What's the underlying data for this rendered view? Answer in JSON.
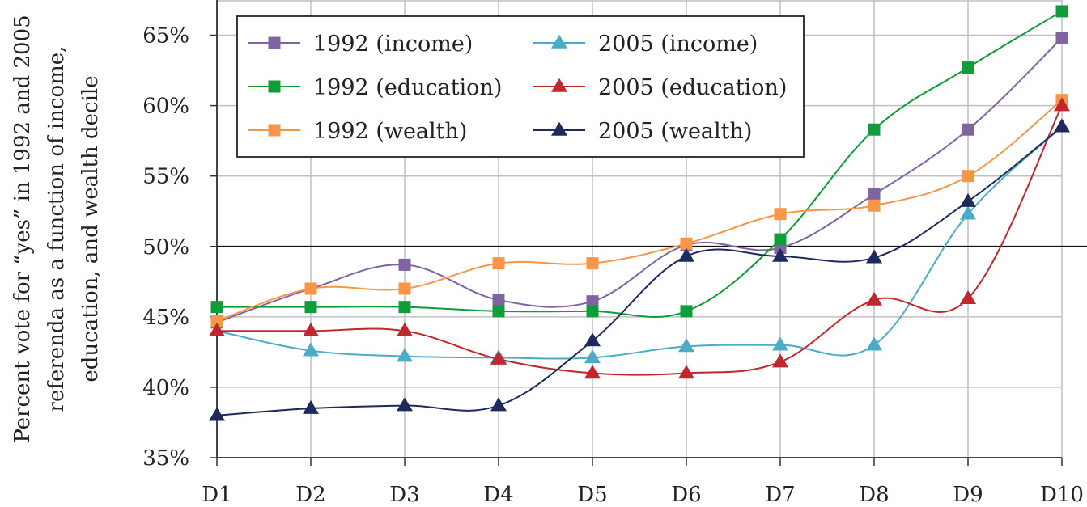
{
  "chart_data": {
    "type": "line",
    "title": "",
    "xlabel": "",
    "ylabel_lines": [
      "Percent vote for “yes” in 1992 and 2005",
      "referenda as a function of income,",
      "education, and wealth decile"
    ],
    "categories": [
      "D1",
      "D2",
      "D3",
      "D4",
      "D5",
      "D6",
      "D7",
      "D8",
      "D9",
      "D10"
    ],
    "ylim": [
      35,
      67.5
    ],
    "yticks": [
      35,
      40,
      45,
      50,
      55,
      60,
      65
    ],
    "ytick_labels": [
      "35%",
      "40%",
      "45%",
      "50%",
      "55%",
      "60%",
      "65%"
    ],
    "reference_line": 50,
    "grid": true,
    "legend_position": "top-left",
    "series": [
      {
        "name": "1992 (income)",
        "marker": "square",
        "color": "#8064a2",
        "values": [
          44.6,
          47.0,
          48.7,
          46.2,
          46.1,
          50.1,
          49.9,
          53.7,
          58.3,
          64.8
        ]
      },
      {
        "name": "1992 (education)",
        "marker": "square",
        "color": "#0f9d3a",
        "values": [
          45.7,
          45.7,
          45.7,
          45.4,
          45.4,
          45.4,
          50.5,
          58.3,
          62.7,
          66.7
        ]
      },
      {
        "name": "1992 (wealth)",
        "marker": "square",
        "color": "#f79646",
        "values": [
          44.7,
          47.0,
          47.0,
          48.8,
          48.8,
          50.2,
          52.3,
          52.9,
          55.0,
          60.4
        ]
      },
      {
        "name": "2005 (income)",
        "marker": "triangle",
        "color": "#4bacc6",
        "values": [
          44.0,
          42.6,
          42.2,
          42.1,
          42.1,
          42.9,
          43.0,
          43.0,
          52.3,
          58.5
        ]
      },
      {
        "name": "2005 (education)",
        "marker": "triangle",
        "color": "#c0272d",
        "values": [
          44.0,
          44.0,
          44.0,
          42.0,
          41.0,
          41.0,
          41.8,
          46.2,
          46.3,
          60.0
        ]
      },
      {
        "name": "2005 (wealth)",
        "marker": "triangle",
        "color": "#1f2a5c",
        "values": [
          38.0,
          38.5,
          38.7,
          38.7,
          43.3,
          49.3,
          49.3,
          49.2,
          53.2,
          58.5
        ]
      }
    ]
  }
}
